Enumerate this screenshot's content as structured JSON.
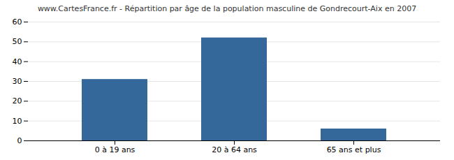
{
  "chart_data": {
    "type": "bar",
    "title": "www.CartesFrance.fr - Répartition par âge de la population masculine de Gondrecourt-Aix en 2007",
    "categories": [
      "0 à 19 ans",
      "20 à 64 ans",
      "65 ans et plus"
    ],
    "values": [
      31,
      52,
      6
    ],
    "color": "#34679a",
    "ylim": [
      0,
      60
    ],
    "yticks": [
      0,
      10,
      20,
      30,
      40,
      50,
      60
    ],
    "grid": true
  }
}
